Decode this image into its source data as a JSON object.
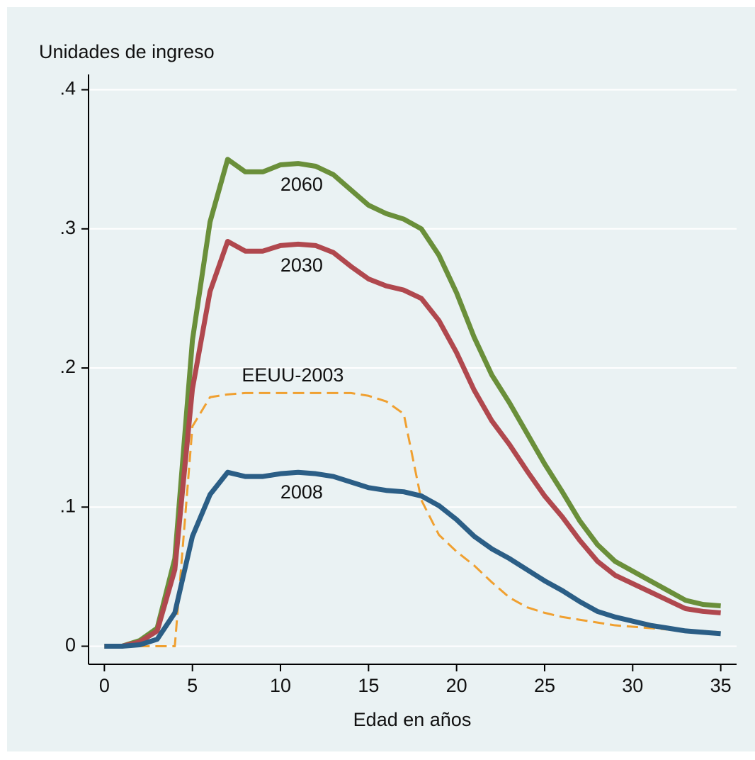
{
  "chart_data": {
    "type": "line",
    "title": "Unidades de ingreso",
    "xlabel": "Edad en años",
    "x": [
      0,
      1,
      2,
      3,
      4,
      5,
      6,
      7,
      8,
      9,
      10,
      11,
      12,
      13,
      14,
      15,
      16,
      17,
      18,
      19,
      20,
      21,
      22,
      23,
      24,
      25,
      26,
      27,
      28,
      29,
      30,
      31,
      32,
      33,
      34,
      35
    ],
    "series": [
      {
        "name": "2060",
        "color": "#6a8f3a",
        "dash": false,
        "values": [
          0,
          0,
          0.004,
          0.013,
          0.063,
          0.22,
          0.305,
          0.35,
          0.341,
          0.341,
          0.346,
          0.347,
          0.345,
          0.339,
          0.328,
          0.317,
          0.311,
          0.307,
          0.3,
          0.281,
          0.254,
          0.222,
          0.195,
          0.175,
          0.153,
          0.131,
          0.111,
          0.09,
          0.073,
          0.061,
          0.054,
          0.047,
          0.04,
          0.033,
          0.03,
          0.029
        ]
      },
      {
        "name": "2030",
        "color": "#b0484e",
        "dash": false,
        "values": [
          0,
          0,
          0.003,
          0.011,
          0.055,
          0.185,
          0.255,
          0.291,
          0.284,
          0.284,
          0.288,
          0.289,
          0.288,
          0.283,
          0.273,
          0.264,
          0.259,
          0.256,
          0.25,
          0.234,
          0.211,
          0.184,
          0.162,
          0.145,
          0.126,
          0.108,
          0.093,
          0.076,
          0.061,
          0.051,
          0.045,
          0.039,
          0.033,
          0.027,
          0.025,
          0.024
        ]
      },
      {
        "name": "EEUU-2003",
        "color": "#f0a030",
        "dash": true,
        "values": [
          0,
          0,
          0,
          0,
          0,
          0.158,
          0.179,
          0.181,
          0.182,
          0.182,
          0.182,
          0.182,
          0.182,
          0.182,
          0.182,
          0.18,
          0.176,
          0.167,
          0.105,
          0.08,
          0.068,
          0.058,
          0.046,
          0.035,
          0.028,
          0.024,
          0.021,
          0.019,
          0.017,
          0.015,
          0.014,
          0.013,
          0.012,
          0.011,
          0.011,
          0.01
        ]
      },
      {
        "name": "2008",
        "color": "#2b5e86",
        "dash": false,
        "values": [
          0,
          0,
          0.001,
          0.005,
          0.024,
          0.079,
          0.109,
          0.125,
          0.122,
          0.122,
          0.124,
          0.125,
          0.124,
          0.122,
          0.118,
          0.114,
          0.112,
          0.111,
          0.108,
          0.101,
          0.091,
          0.079,
          0.07,
          0.063,
          0.055,
          0.047,
          0.04,
          0.032,
          0.025,
          0.021,
          0.018,
          0.015,
          0.013,
          0.011,
          0.01,
          0.009
        ]
      }
    ],
    "annotations": [
      {
        "text": "2060",
        "x": 11.2,
        "y": 0.331
      },
      {
        "text": "2030",
        "x": 11.2,
        "y": 0.273
      },
      {
        "text": "EEUU-2003",
        "x": 10.7,
        "y": 0.194
      },
      {
        "text": "2008",
        "x": 11.2,
        "y": 0.11
      }
    ],
    "xlim": [
      -0.9,
      35.9
    ],
    "xticks": [
      0,
      5,
      10,
      15,
      20,
      25,
      30,
      35
    ],
    "ylim": [
      -0.013,
      0.411
    ],
    "yticks": [
      0,
      {
        "value": 0.1,
        "label": ".1"
      },
      {
        "value": 0.2,
        "label": ".2"
      },
      {
        "value": 0.3,
        "label": ".3"
      },
      {
        "value": 0.4,
        "label": ".4"
      }
    ],
    "grid": true
  }
}
